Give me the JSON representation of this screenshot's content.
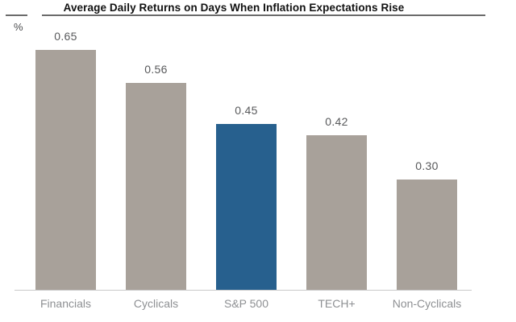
{
  "chart_data": {
    "type": "bar",
    "title": "Average Daily Returns on Days When Inflation Expectations Rise",
    "ylabel": "%",
    "xlabel": "",
    "categories": [
      "Financials",
      "Cyclicals",
      "S&P 500",
      "TECH+",
      "Non-Cyclicals"
    ],
    "values": [
      0.65,
      0.56,
      0.45,
      0.42,
      0.3
    ],
    "value_labels": [
      "0.65",
      "0.56",
      "0.45",
      "0.42",
      "0.30"
    ],
    "ylim": [
      0,
      0.75
    ],
    "grid": false,
    "legend": false,
    "highlight_category": "S&P 500",
    "colors": {
      "bar_default": "#A8A19A",
      "bar_highlight": "#27608E",
      "axis_line": "#C9C9C9",
      "title_rule": "#6B6B6B",
      "title_text": "#111111",
      "value_label": "#58595B",
      "category_label": "#8E9093",
      "unit_label": "#4C4D4F"
    }
  }
}
